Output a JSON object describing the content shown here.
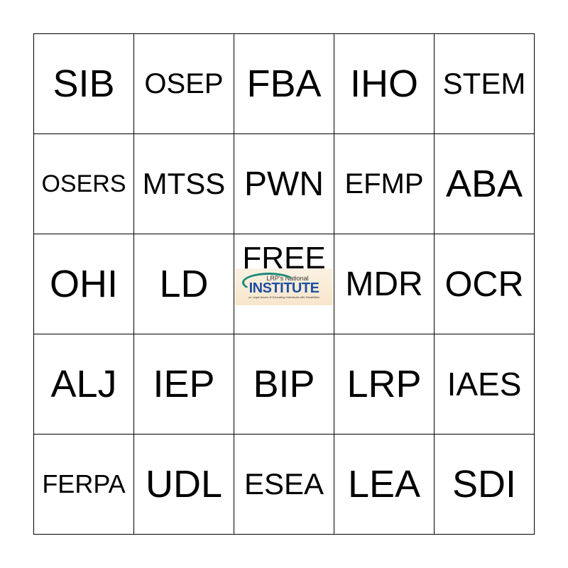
{
  "cells": [
    "SIB",
    "OSEP",
    "FBA",
    "IHO",
    "STEM",
    "OSERS",
    "MTSS",
    "PWN",
    "EFMP",
    "ABA",
    "OHI",
    "LD",
    "FREE",
    "MDR",
    "OCR",
    "ALJ",
    "IEP",
    "BIP",
    "LRP",
    "IAES",
    "FERPA",
    "UDL",
    "ESEA",
    "LEA",
    "SDI"
  ],
  "free_space": {
    "label": "FREE",
    "logo": {
      "top": "LRP's National",
      "main": "INSTITUTE",
      "sub": "on Legal Issues of Educating Individuals with Disabilities",
      "colors": {
        "main": "#1d4fa0",
        "arc": "#1a8a7a"
      }
    }
  }
}
